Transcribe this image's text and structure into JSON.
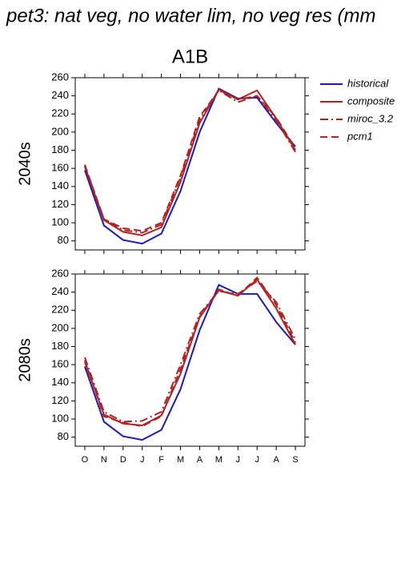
{
  "title": "pet3: nat veg, no water lim, no veg res (mm",
  "chart_data": [
    {
      "type": "line",
      "title": "A1B",
      "row_label": "2040s",
      "categories": [
        null,
        null,
        null,
        null,
        null,
        null,
        null,
        null,
        null,
        null,
        null,
        null
      ],
      "ylim": [
        70,
        260
      ],
      "yticks": [
        80,
        100,
        120,
        140,
        160,
        180,
        200,
        220,
        240,
        260
      ],
      "series": [
        {
          "name": "historical",
          "color": "#1c1cb4",
          "dash": "solid",
          "values": [
            158,
            97,
            81,
            77,
            88,
            135,
            200,
            248,
            237,
            238,
            210,
            184
          ]
        },
        {
          "name": "composite",
          "color": "#b22222",
          "dash": "solid",
          "values": [
            162,
            103,
            90,
            86,
            95,
            145,
            210,
            247,
            236,
            246,
            215,
            180
          ]
        },
        {
          "name": "miroc_3.2",
          "color": "#b22222",
          "dash": "dashdot",
          "values": [
            163,
            104,
            92,
            89,
            98,
            150,
            214,
            246,
            233,
            240,
            213,
            178
          ]
        },
        {
          "name": "pcm1",
          "color": "#b22222",
          "dash": "dashed",
          "values": [
            164,
            104,
            94,
            91,
            100,
            152,
            217,
            246,
            236,
            240,
            216,
            182
          ]
        }
      ]
    },
    {
      "type": "line",
      "row_label": "2080s",
      "categories": [
        "O",
        "N",
        "D",
        "J",
        "F",
        "M",
        "A",
        "M",
        "J",
        "J",
        "A",
        "S"
      ],
      "ylim": [
        70,
        260
      ],
      "yticks": [
        80,
        100,
        120,
        140,
        160,
        180,
        200,
        220,
        240,
        260
      ],
      "series": [
        {
          "color": "#1c1cb4",
          "dash": "solid",
          "values": [
            158,
            97,
            81,
            77,
            88,
            133,
            198,
            248,
            238,
            238,
            207,
            182
          ]
        },
        {
          "color": "#b22222",
          "dash": "solid",
          "values": [
            163,
            105,
            95,
            93,
            104,
            150,
            212,
            242,
            236,
            254,
            222,
            182
          ]
        },
        {
          "color": "#b22222",
          "dash": "dashdot",
          "values": [
            168,
            108,
            97,
            98,
            108,
            160,
            216,
            241,
            238,
            252,
            229,
            188
          ]
        },
        {
          "color": "#b22222",
          "dash": "dashed",
          "values": [
            165,
            103,
            96,
            92,
            103,
            155,
            213,
            243,
            236,
            256,
            226,
            184
          ]
        }
      ]
    }
  ]
}
